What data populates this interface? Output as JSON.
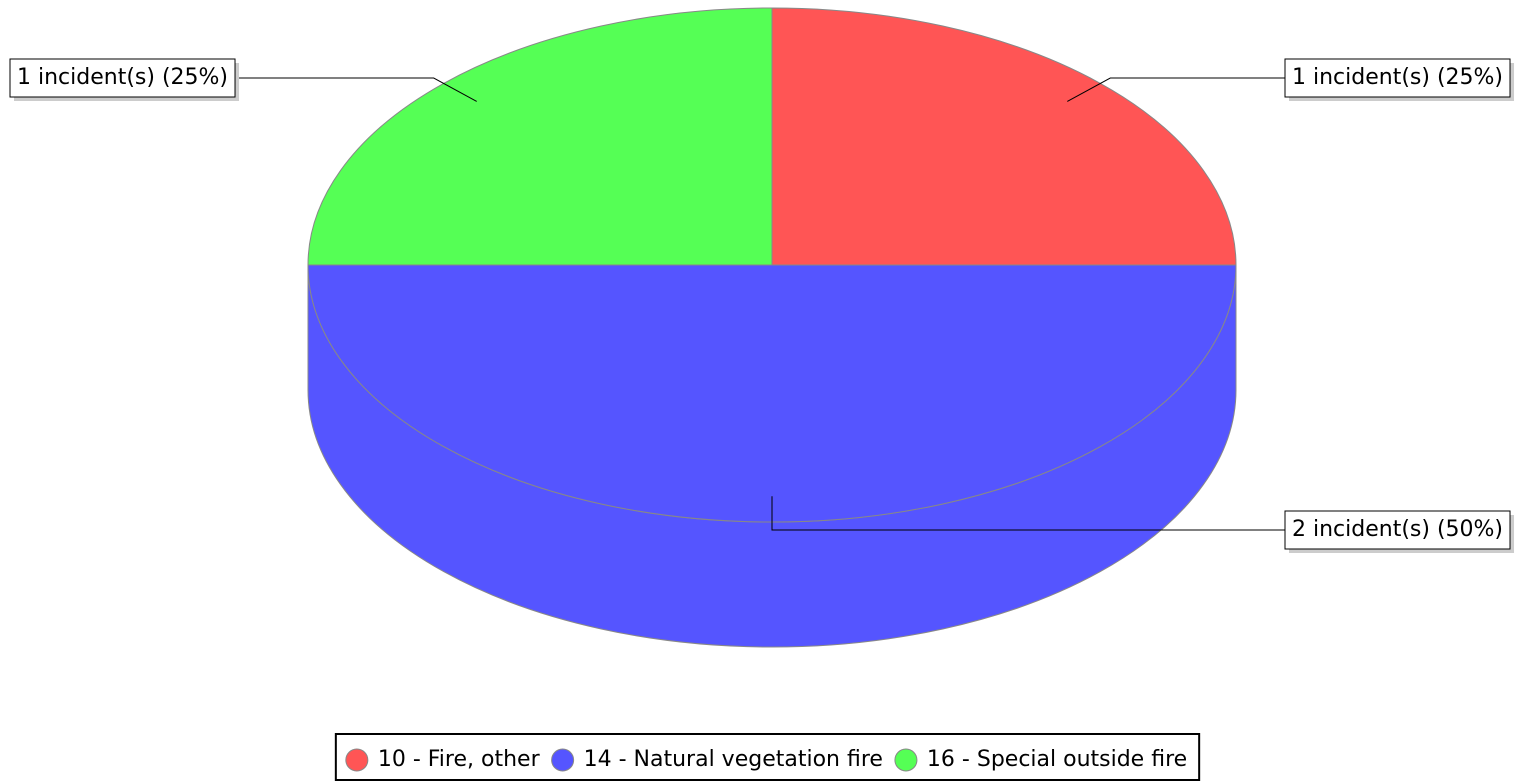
{
  "chart_data": {
    "type": "pie",
    "categories": [
      "10 - Fire, other",
      "14 - Natural vegetation fire",
      "16 - Special outside fire"
    ],
    "values": [
      1,
      2,
      1
    ],
    "value_labels": [
      "1 incident(s) (25%)",
      "2 incident(s) (50%)",
      "1 incident(s) (25%)"
    ],
    "colors": [
      "#ff5555",
      "#5555ff",
      "#55ff55"
    ],
    "legend": "bottom"
  }
}
